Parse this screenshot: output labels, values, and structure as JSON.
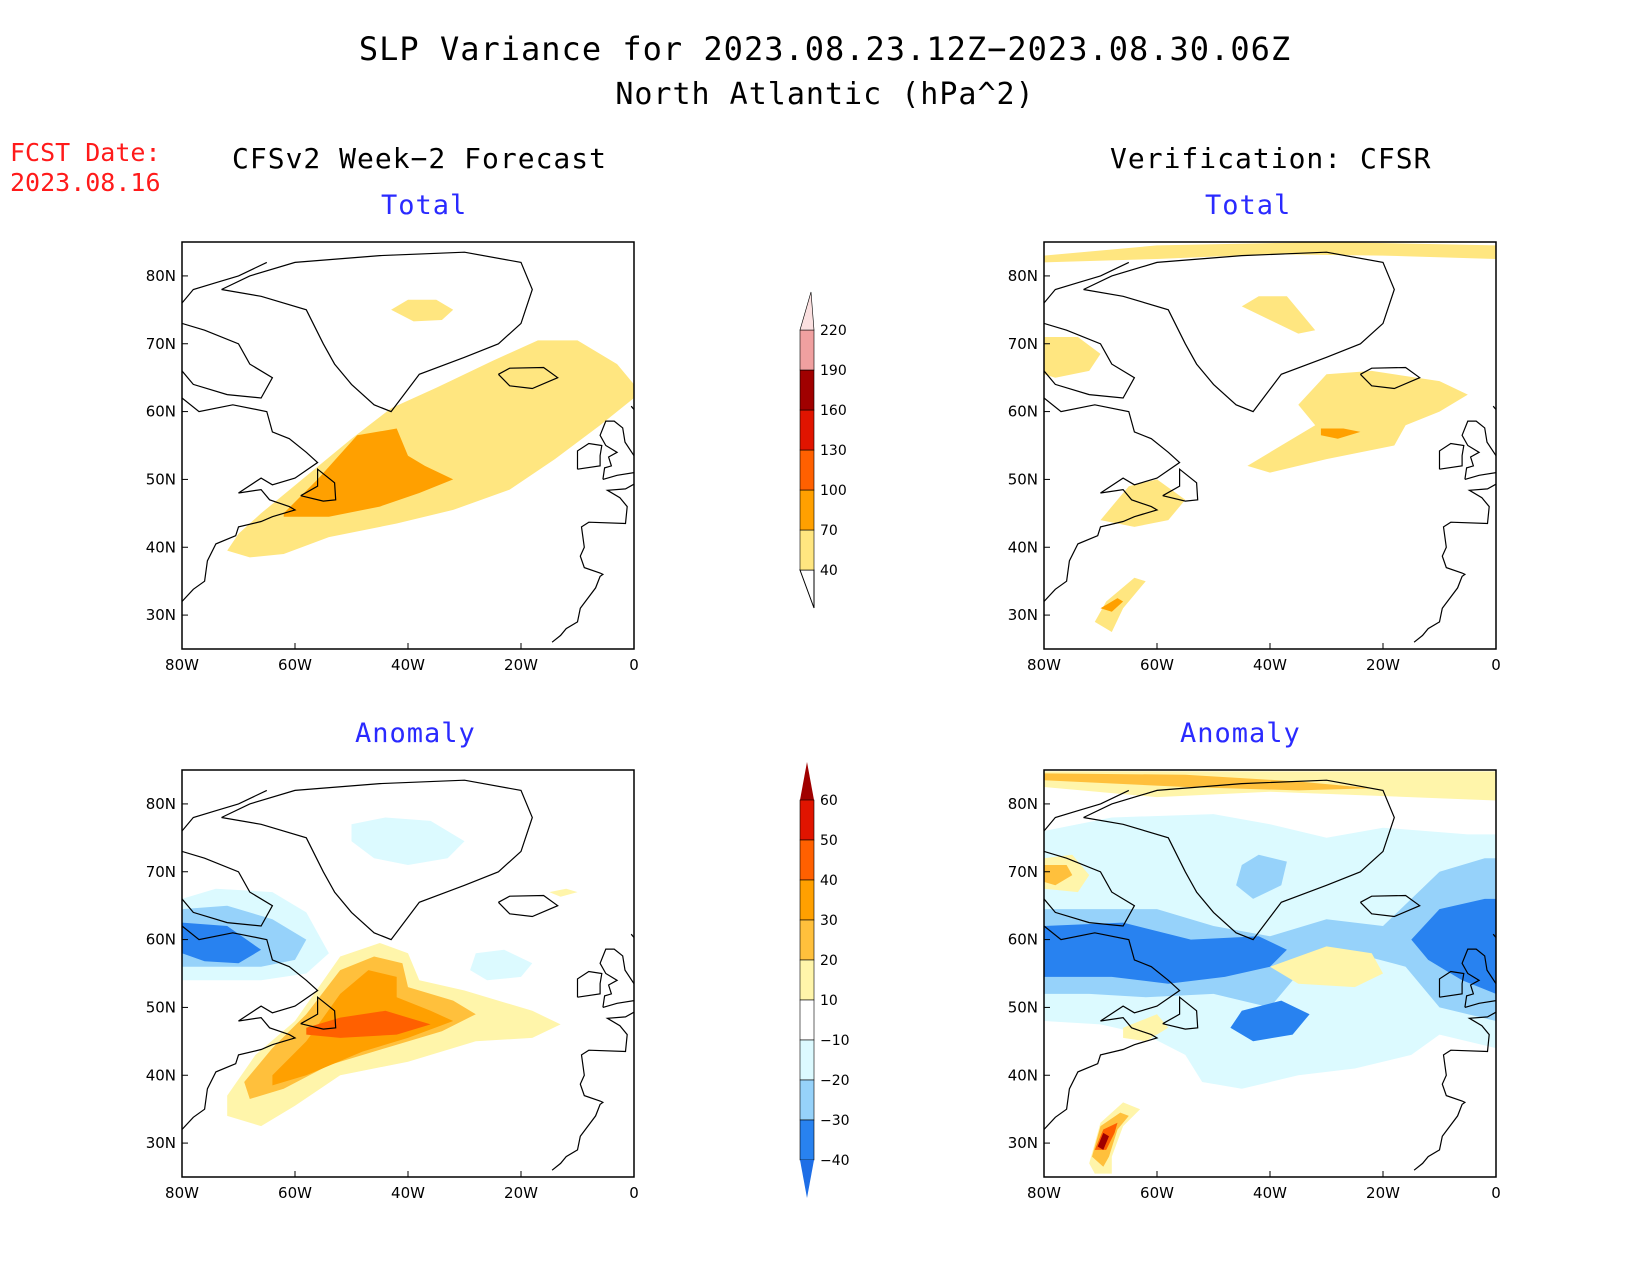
{
  "title": "SLP Variance for 2023.08.23.12Z−2023.08.30.06Z",
  "subtitle": "North Atlantic (hPa^2)",
  "fcst_date_label": "FCST Date:",
  "fcst_date_value": "2023.08.16",
  "columns": {
    "left": "CFSv2 Week−2 Forecast",
    "right": "Verification: CFSR"
  },
  "panel_titles": {
    "total": "Total",
    "anomaly": "Anomaly"
  },
  "axes": {
    "lon_ticks": [
      "80W",
      "60W",
      "40W",
      "20W",
      "0"
    ],
    "lat_ticks": [
      "80N",
      "70N",
      "60N",
      "50N",
      "40N",
      "30N"
    ]
  },
  "colors": {
    "title_blue": "#2a2aff",
    "fcst_red": "#ff1a1a",
    "coast": "#000000"
  },
  "total_colorbar": {
    "labels": [
      "40",
      "70",
      "100",
      "130",
      "160",
      "190",
      "220"
    ],
    "colors": [
      "#ffe680",
      "#ffa000",
      "#ff6000",
      "#e01400",
      "#a00000",
      "#f0a0a0",
      "#fbe0e0"
    ]
  },
  "anomaly_colorbar": {
    "labels": [
      "−40",
      "−30",
      "−20",
      "−10",
      "10",
      "20",
      "30",
      "40",
      "50",
      "60"
    ],
    "colors": [
      "#1e6ee6",
      "#2882f0",
      "#96d2fa",
      "#dcfaff",
      "#ffffff",
      "#fff5aa",
      "#ffc03c",
      "#ffa000",
      "#ff6000",
      "#e01400",
      "#a00000"
    ]
  },
  "chart_data": {
    "type": "heatmap",
    "title": "SLP Variance for 2023.08.23.12Z−2023.08.30.06Z",
    "subtitle": "North Atlantic (hPa^2)",
    "x_range": [
      -80,
      0
    ],
    "y_range": [
      25,
      85
    ],
    "panels": [
      {
        "column": "CFSv2 Week−2 Forecast",
        "field": "Total",
        "features": [
          {
            "level": 40,
            "lon": -40,
            "lat": 50,
            "desc": "broad band from ~70W,40N to ~0,65N"
          },
          {
            "level": 70,
            "lon": -45,
            "lat": 48
          },
          {
            "level": 40,
            "lon": -37,
            "lat": 75
          }
        ]
      },
      {
        "column": "Verification: CFSR",
        "field": "Total",
        "features": [
          {
            "level": 40,
            "lon": -38,
            "lat": 84
          },
          {
            "level": 40,
            "lon": -38,
            "lat": 75
          },
          {
            "level": 40,
            "lon": -75,
            "lat": 69
          },
          {
            "level": 40,
            "lon": -25,
            "lat": 60
          },
          {
            "level": 70,
            "lon": -28,
            "lat": 57
          },
          {
            "level": 40,
            "lon": -63,
            "lat": 48
          },
          {
            "level": 70,
            "lon": -69,
            "lat": 32
          }
        ]
      },
      {
        "column": "CFSv2 Week−2 Forecast",
        "field": "Anomaly",
        "features": [
          {
            "level": -30,
            "lon": -75,
            "lat": 60
          },
          {
            "level": -10,
            "lon": -45,
            "lat": 74
          },
          {
            "level": -10,
            "lon": -23,
            "lat": 56
          },
          {
            "level": 10,
            "lon": -12,
            "lat": 67
          },
          {
            "level": 20,
            "lon": -50,
            "lat": 47
          },
          {
            "level": 40,
            "lon": -45,
            "lat": 48
          }
        ]
      },
      {
        "column": "Verification: CFSR",
        "field": "Anomaly",
        "features": [
          {
            "level": 20,
            "lon": -40,
            "lat": 84
          },
          {
            "level": 20,
            "lon": -77,
            "lat": 70
          },
          {
            "level": -30,
            "lon": -50,
            "lat": 56
          },
          {
            "level": -30,
            "lon": -42,
            "lat": 47
          },
          {
            "level": -30,
            "lon": -3,
            "lat": 59
          },
          {
            "level": -20,
            "lon": -40,
            "lat": 69
          },
          {
            "level": 10,
            "lon": -28,
            "lat": 54
          },
          {
            "level": 10,
            "lon": -64,
            "lat": 46
          },
          {
            "level": 60,
            "lon": -70,
            "lat": 30
          }
        ]
      }
    ]
  }
}
